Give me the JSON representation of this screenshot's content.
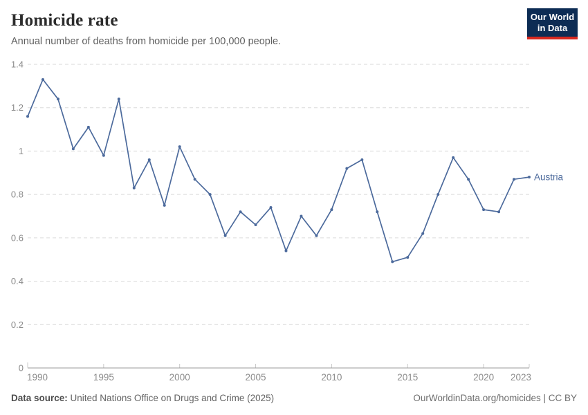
{
  "header": {
    "title": "Homicide rate",
    "subtitle": "Annual number of deaths from homicide per 100,000 people."
  },
  "logo": {
    "line1": "Our World",
    "line2": "in Data",
    "bg_color": "#0d2c54",
    "accent_color": "#d7281f"
  },
  "chart_data": {
    "type": "line",
    "title": "Homicide rate",
    "subtitle": "Annual number of deaths from homicide per 100,000 people.",
    "xlabel": "",
    "ylabel": "",
    "xlim": [
      1990,
      2023
    ],
    "ylim": [
      0,
      1.4
    ],
    "x_ticks": [
      1990,
      1995,
      2000,
      2005,
      2010,
      2015,
      2020,
      2023
    ],
    "y_ticks": [
      0,
      0.2,
      0.4,
      0.6,
      0.8,
      1,
      1.2,
      1.4
    ],
    "grid": "horizontal-dashed",
    "legend_position": "end-of-line-label",
    "series": [
      {
        "name": "Austria",
        "color": "#4C6A9C",
        "x": [
          1990,
          1991,
          1992,
          1993,
          1994,
          1995,
          1996,
          1997,
          1998,
          1999,
          2000,
          2001,
          2002,
          2003,
          2004,
          2005,
          2006,
          2007,
          2008,
          2009,
          2010,
          2011,
          2012,
          2013,
          2014,
          2015,
          2016,
          2017,
          2018,
          2019,
          2020,
          2021,
          2022,
          2023
        ],
        "values": [
          1.16,
          1.33,
          1.24,
          1.01,
          1.11,
          0.98,
          1.24,
          0.83,
          0.96,
          0.75,
          1.02,
          0.87,
          0.8,
          0.61,
          0.72,
          0.66,
          0.74,
          0.54,
          0.7,
          0.61,
          0.73,
          0.92,
          0.96,
          0.72,
          0.49,
          0.51,
          0.62,
          0.8,
          0.97,
          0.87,
          0.73,
          0.72,
          0.87,
          0.88
        ]
      }
    ],
    "style": {
      "grid_color": "#dadada",
      "axis_color": "#999999",
      "tick_color": "#c8c8c8",
      "axis_label_color": "#8c8c8c"
    }
  },
  "footer": {
    "source_label": "Data source:",
    "source_text": " United Nations Office on Drugs and Crime (2025)",
    "link_text": "OurWorldinData.org/homicides | CC BY"
  }
}
